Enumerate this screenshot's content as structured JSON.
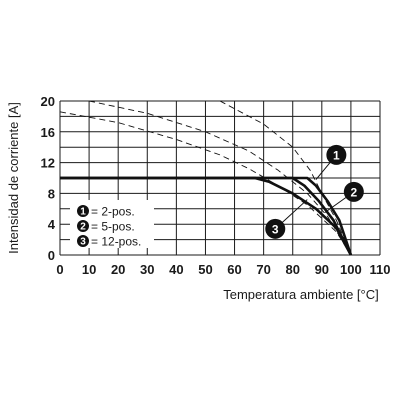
{
  "chart_data": {
    "type": "line",
    "xlabel": "Temperatura ambiente [°C]",
    "ylabel": "Intensidad de corriente [A]",
    "xlim": [
      0,
      110
    ],
    "ylim": [
      0,
      20
    ],
    "x_ticks": [
      0,
      10,
      20,
      30,
      40,
      50,
      60,
      70,
      80,
      90,
      100,
      110
    ],
    "y_ticks": [
      0,
      4,
      8,
      12,
      16,
      20
    ],
    "grid": true,
    "legend_position": "lower-left",
    "legend": [
      {
        "marker": "1",
        "label": "= 2-pos."
      },
      {
        "marker": "2",
        "label": "= 5-pos."
      },
      {
        "marker": "3",
        "label": "= 12-pos."
      }
    ],
    "series": [
      {
        "marker": "1",
        "style": "solid",
        "points": [
          [
            0,
            10
          ],
          [
            85,
            10
          ],
          [
            88,
            9
          ],
          [
            92,
            7
          ],
          [
            96,
            4.5
          ],
          [
            100,
            0
          ]
        ]
      },
      {
        "marker": "2",
        "style": "solid",
        "points": [
          [
            0,
            10
          ],
          [
            80,
            10
          ],
          [
            84,
            9
          ],
          [
            89,
            7
          ],
          [
            94,
            4.5
          ],
          [
            100,
            0
          ]
        ]
      },
      {
        "marker": "3",
        "style": "solid",
        "points": [
          [
            0,
            10
          ],
          [
            67,
            10
          ],
          [
            72,
            9.5
          ],
          [
            80,
            8
          ],
          [
            88,
            6
          ],
          [
            95,
            3.5
          ],
          [
            100,
            0
          ]
        ]
      },
      {
        "marker": "1",
        "style": "dashed",
        "points": [
          [
            55,
            20
          ],
          [
            70,
            17
          ],
          [
            80,
            14
          ],
          [
            86,
            11
          ],
          [
            90,
            8
          ],
          [
            95,
            4.5
          ],
          [
            100,
            0
          ]
        ]
      },
      {
        "marker": "2",
        "style": "dashed",
        "points": [
          [
            10,
            20
          ],
          [
            30,
            18.4
          ],
          [
            50,
            16
          ],
          [
            65,
            13.5
          ],
          [
            75,
            11
          ],
          [
            85,
            8
          ],
          [
            92,
            5
          ],
          [
            100,
            0
          ]
        ]
      },
      {
        "marker": "3",
        "style": "dashed",
        "points": [
          [
            0,
            18.6
          ],
          [
            20,
            17.2
          ],
          [
            40,
            15
          ],
          [
            55,
            13
          ],
          [
            65,
            11.2
          ],
          [
            75,
            9
          ],
          [
            85,
            6.5
          ],
          [
            95,
            3
          ],
          [
            100,
            0
          ]
        ]
      }
    ],
    "callouts": [
      {
        "marker": "1",
        "label_at": [
          95,
          13
        ],
        "points_to": [
          88,
          9.8
        ]
      },
      {
        "marker": "2",
        "label_at": [
          101,
          8.2
        ],
        "points_to": [
          91,
          5.5
        ]
      },
      {
        "marker": "3",
        "label_at": [
          74,
          3.4
        ],
        "points_to": [
          85,
          7.2
        ]
      }
    ]
  }
}
